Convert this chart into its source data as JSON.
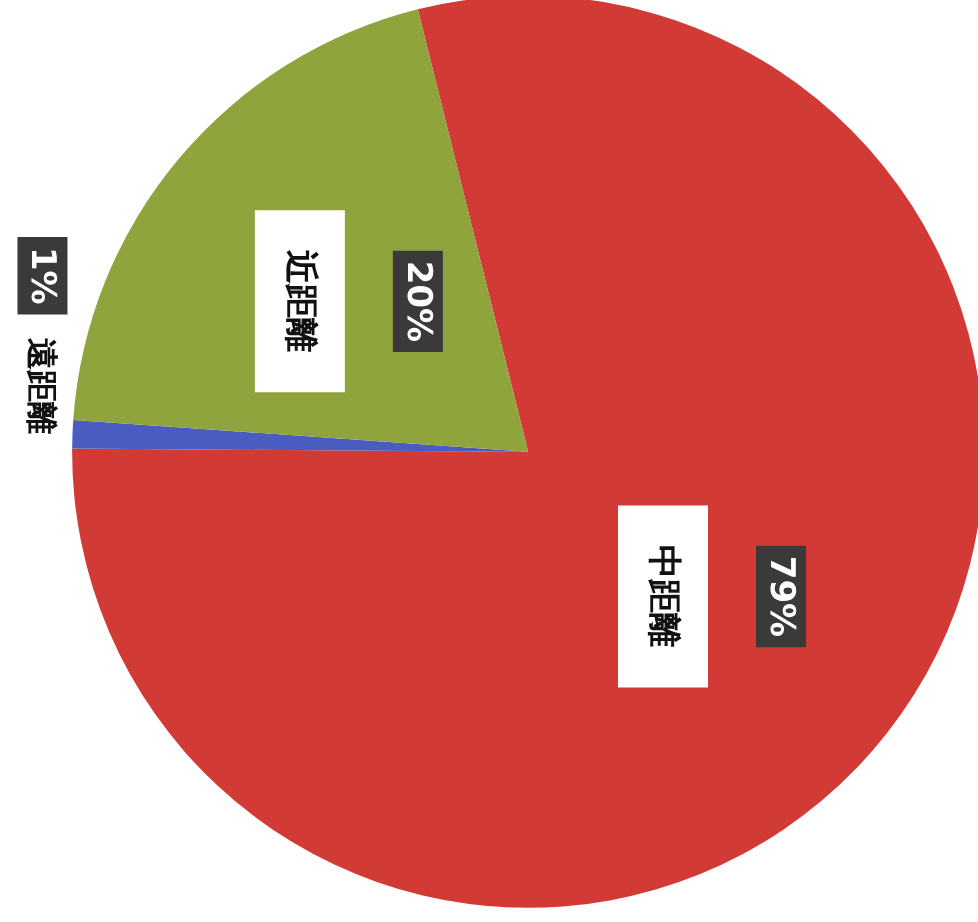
{
  "chart_data": {
    "type": "pie",
    "categories": [
      "中距離",
      "遠距離",
      "近距離"
    ],
    "values": [
      79,
      1,
      20
    ],
    "colors": [
      "#d23a36",
      "#4a5cc0",
      "#8fa43c"
    ],
    "value_labels": [
      "79%",
      "1%",
      "20%"
    ],
    "legend": false
  }
}
